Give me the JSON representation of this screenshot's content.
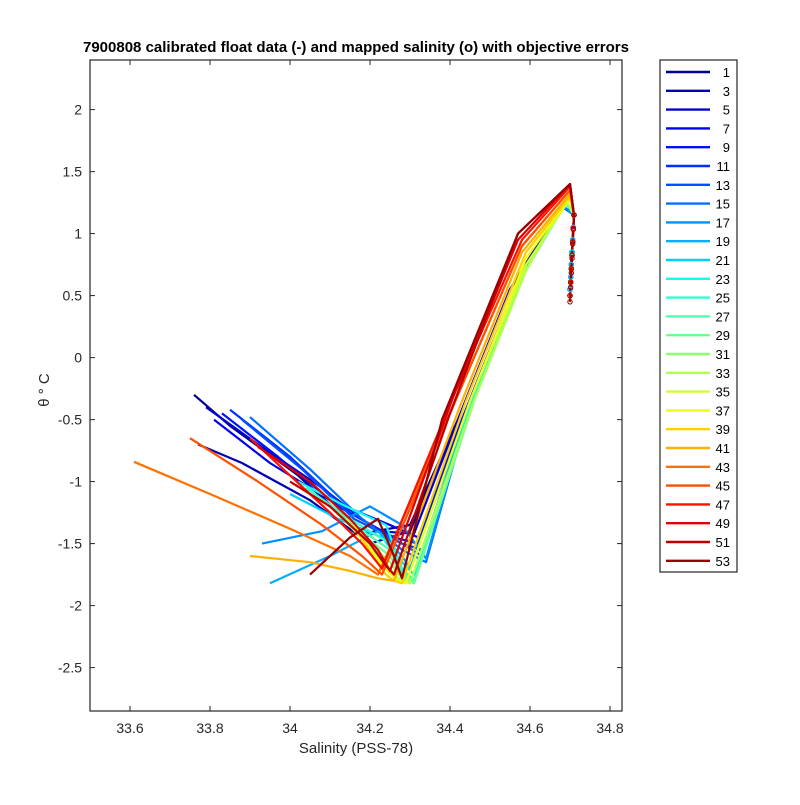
{
  "chart_data": {
    "type": "line",
    "title": "7900808 calibrated float data (-) and mapped salinity (o) with objective errors",
    "xlabel": "Salinity (PSS-78)",
    "ylabel": "θ ° C",
    "xlim": [
      33.5,
      34.83
    ],
    "ylim": [
      -2.85,
      2.4
    ],
    "xticks": [
      33.6,
      33.8,
      34,
      34.2,
      34.4,
      34.6,
      34.8
    ],
    "xtick_labels": [
      "33.6",
      "33.8",
      "34",
      "34.2",
      "34.4",
      "34.6",
      "34.8"
    ],
    "yticks": [
      2,
      1.5,
      1,
      0.5,
      0,
      -0.5,
      -1,
      -1.5,
      -2,
      -2.5
    ],
    "ytick_labels": [
      "2",
      "1.5",
      "1",
      "0.5",
      "0",
      "-0.5",
      "-1",
      "-1.5",
      "-2",
      "-2.5"
    ],
    "grid": false,
    "legend_position": "outside-right",
    "series": [
      {
        "name": "1",
        "color": "#00008f",
        "x": [
          33.76,
          33.85,
          34.02,
          34.18,
          34.3,
          34.42,
          34.55,
          34.68,
          34.71,
          34.7
        ],
        "y": [
          -0.3,
          -0.55,
          -0.95,
          -1.42,
          -1.35,
          -0.5,
          0.55,
          1.22,
          1.15,
          0.55
        ]
      },
      {
        "name": "3",
        "color": "#0000b0",
        "x": [
          33.77,
          33.88,
          34.05,
          34.2,
          34.3,
          34.42,
          34.55,
          34.68,
          34.71,
          34.7
        ],
        "y": [
          -0.7,
          -0.85,
          -1.15,
          -1.5,
          -1.4,
          -0.5,
          0.55,
          1.22,
          1.15,
          0.55
        ]
      },
      {
        "name": "5",
        "color": "#0000d0",
        "x": [
          33.79,
          33.92,
          34.08,
          34.22,
          34.31,
          34.42,
          34.55,
          34.68,
          34.71,
          34.7
        ],
        "y": [
          -0.4,
          -0.7,
          -1.05,
          -1.4,
          -1.42,
          -0.5,
          0.55,
          1.23,
          1.15,
          0.55
        ]
      },
      {
        "name": "7",
        "color": "#0000f0",
        "x": [
          33.81,
          33.95,
          34.1,
          34.25,
          34.32,
          34.43,
          34.56,
          34.68,
          34.71,
          34.7
        ],
        "y": [
          -0.5,
          -0.85,
          -1.15,
          -1.35,
          -1.45,
          -0.5,
          0.55,
          1.23,
          1.15,
          0.55
        ]
      },
      {
        "name": "9",
        "color": "#0010ff",
        "x": [
          33.83,
          33.97,
          34.12,
          34.26,
          34.32,
          34.43,
          34.56,
          34.68,
          34.71,
          34.7
        ],
        "y": [
          -0.45,
          -0.8,
          -1.2,
          -1.45,
          -1.5,
          -0.5,
          0.55,
          1.23,
          1.15,
          0.55
        ]
      },
      {
        "name": "11",
        "color": "#0030ff",
        "x": [
          33.85,
          34.0,
          34.15,
          34.28,
          34.33,
          34.44,
          34.56,
          34.68,
          34.71,
          34.7
        ],
        "y": [
          -0.42,
          -0.8,
          -1.25,
          -1.5,
          -1.55,
          -0.5,
          0.55,
          1.23,
          1.15,
          0.55
        ]
      },
      {
        "name": "13",
        "color": "#0050ff",
        "x": [
          33.88,
          34.03,
          34.16,
          34.28,
          34.33,
          34.44,
          34.56,
          34.68,
          34.71,
          34.7
        ],
        "y": [
          -0.5,
          -0.9,
          -1.3,
          -1.5,
          -1.6,
          -0.5,
          0.55,
          1.23,
          1.15,
          0.55
        ]
      },
      {
        "name": "15",
        "color": "#0070ff",
        "x": [
          33.9,
          34.05,
          34.18,
          34.28,
          34.34,
          34.44,
          34.56,
          34.68,
          34.71,
          34.7
        ],
        "y": [
          -0.48,
          -0.9,
          -1.3,
          -1.55,
          -1.65,
          -0.5,
          0.55,
          1.23,
          1.15,
          0.55
        ]
      },
      {
        "name": "17",
        "color": "#0090ff",
        "x": [
          33.93,
          34.08,
          34.2,
          34.28,
          34.34,
          34.44,
          34.56,
          34.68,
          34.71,
          34.7
        ],
        "y": [
          -1.5,
          -1.4,
          -1.2,
          -1.35,
          -1.62,
          -0.5,
          0.55,
          1.23,
          1.15,
          0.55
        ]
      },
      {
        "name": "19",
        "color": "#00b0ff",
        "x": [
          33.95,
          34.1,
          34.22,
          34.28,
          34.3,
          34.45,
          34.57,
          34.69,
          34.71,
          34.7
        ],
        "y": [
          -1.82,
          -1.6,
          -1.4,
          -1.6,
          -1.7,
          -0.4,
          0.6,
          1.25,
          1.15,
          0.55
        ]
      },
      {
        "name": "21",
        "color": "#00d0ff",
        "x": [
          34.0,
          34.12,
          34.23,
          34.28,
          34.31,
          34.45,
          34.57,
          34.69,
          34.71,
          34.7
        ],
        "y": [
          -1.1,
          -1.3,
          -1.45,
          -1.65,
          -1.75,
          -0.4,
          0.6,
          1.25,
          1.15,
          0.55
        ]
      },
      {
        "name": "23",
        "color": "#10ffef",
        "x": [
          34.02,
          34.14,
          34.24,
          34.28,
          34.31,
          34.45,
          34.57,
          34.69,
          34.71,
          34.7
        ],
        "y": [
          -1.0,
          -1.2,
          -1.35,
          -1.7,
          -1.8,
          -0.4,
          0.6,
          1.25,
          1.15,
          0.5
        ]
      },
      {
        "name": "25",
        "color": "#30ffcf",
        "x": [
          34.04,
          34.15,
          34.25,
          34.28,
          34.31,
          34.46,
          34.58,
          34.69,
          34.71,
          34.7
        ],
        "y": [
          -1.05,
          -1.3,
          -1.5,
          -1.72,
          -1.82,
          -0.35,
          0.65,
          1.25,
          1.15,
          0.5
        ]
      },
      {
        "name": "27",
        "color": "#50ffaf",
        "x": [
          34.06,
          34.16,
          34.25,
          34.28,
          34.31,
          34.46,
          34.58,
          34.69,
          34.71,
          34.7
        ],
        "y": [
          -1.1,
          -1.35,
          -1.55,
          -1.75,
          -1.82,
          -0.35,
          0.65,
          1.26,
          1.15,
          0.5
        ]
      },
      {
        "name": "29",
        "color": "#70ff8f",
        "x": [
          34.08,
          34.17,
          34.25,
          34.28,
          34.31,
          34.46,
          34.58,
          34.69,
          34.71,
          34.7
        ],
        "y": [
          -1.15,
          -1.4,
          -1.6,
          -1.76,
          -1.82,
          -0.35,
          0.65,
          1.26,
          1.15,
          0.5
        ]
      },
      {
        "name": "31",
        "color": "#90ff6f",
        "x": [
          34.1,
          34.18,
          34.25,
          34.28,
          34.3,
          34.46,
          34.58,
          34.69,
          34.71,
          34.7
        ],
        "y": [
          -1.2,
          -1.45,
          -1.65,
          -1.78,
          -1.82,
          -0.35,
          0.65,
          1.27,
          1.15,
          0.5
        ]
      },
      {
        "name": "33",
        "color": "#b0ff4f",
        "x": [
          34.12,
          34.19,
          34.25,
          34.27,
          34.3,
          34.46,
          34.59,
          34.69,
          34.71,
          34.7
        ],
        "y": [
          -1.25,
          -1.5,
          -1.7,
          -1.78,
          -1.82,
          -0.35,
          0.7,
          1.27,
          1.15,
          0.5
        ]
      },
      {
        "name": "35",
        "color": "#d0ff2f",
        "x": [
          34.14,
          34.2,
          34.25,
          34.27,
          34.29,
          34.45,
          34.59,
          34.7,
          34.71,
          34.7
        ],
        "y": [
          -1.3,
          -1.55,
          -1.72,
          -1.8,
          -1.82,
          -0.35,
          0.75,
          1.28,
          1.15,
          0.5
        ]
      },
      {
        "name": "37",
        "color": "#f0ff0f",
        "x": [
          34.16,
          34.21,
          34.25,
          34.27,
          34.29,
          34.45,
          34.59,
          34.7,
          34.71,
          34.7
        ],
        "y": [
          -1.35,
          -1.6,
          -1.74,
          -1.8,
          -1.82,
          -0.35,
          0.8,
          1.3,
          1.15,
          0.5
        ]
      },
      {
        "name": "39",
        "color": "#ffd000",
        "x": [
          34.17,
          34.21,
          34.24,
          34.26,
          34.28,
          34.44,
          34.59,
          34.7,
          34.71,
          34.7
        ],
        "y": [
          -1.4,
          -1.62,
          -1.75,
          -1.8,
          -1.82,
          -0.35,
          0.85,
          1.3,
          1.15,
          0.5
        ]
      },
      {
        "name": "41",
        "color": "#ffb000",
        "x": [
          33.9,
          34.05,
          34.15,
          34.22,
          34.26,
          34.43,
          34.58,
          34.7,
          34.71,
          34.7
        ],
        "y": [
          -1.6,
          -1.65,
          -1.72,
          -1.78,
          -1.8,
          -0.35,
          0.85,
          1.32,
          1.15,
          0.5
        ]
      },
      {
        "name": "43",
        "color": "#ff7000",
        "x": [
          33.61,
          33.8,
          34.0,
          34.15,
          34.22,
          34.42,
          34.58,
          34.7,
          34.71,
          34.7
        ],
        "y": [
          -0.84,
          -1.1,
          -1.38,
          -1.6,
          -1.75,
          -0.3,
          0.9,
          1.35,
          1.15,
          0.5
        ]
      },
      {
        "name": "45",
        "color": "#ff5000",
        "x": [
          33.75,
          33.92,
          34.08,
          34.18,
          34.23,
          34.42,
          34.58,
          34.7,
          34.71,
          34.7
        ],
        "y": [
          -0.65,
          -1.0,
          -1.35,
          -1.6,
          -1.75,
          -0.3,
          0.9,
          1.35,
          1.15,
          0.5
        ]
      },
      {
        "name": "47",
        "color": "#ff1000",
        "x": [
          33.9,
          34.0,
          34.1,
          34.18,
          34.23,
          34.41,
          34.58,
          34.7,
          34.71,
          34.7
        ],
        "y": [
          -0.65,
          -0.95,
          -1.25,
          -1.5,
          -1.7,
          -0.3,
          0.95,
          1.38,
          1.15,
          0.5
        ]
      },
      {
        "name": "49",
        "color": "#e00000",
        "x": [
          33.92,
          34.05,
          34.15,
          34.22,
          34.25,
          34.41,
          34.57,
          34.7,
          34.71,
          34.7
        ],
        "y": [
          -0.72,
          -1.0,
          -1.3,
          -1.55,
          -1.72,
          -0.3,
          0.95,
          1.4,
          1.15,
          0.5
        ]
      },
      {
        "name": "51",
        "color": "#c00000",
        "x": [
          34.0,
          34.1,
          34.2,
          34.24,
          34.26,
          34.4,
          34.57,
          34.7,
          34.71,
          34.7
        ],
        "y": [
          -1.0,
          -1.2,
          -1.5,
          -1.68,
          -1.75,
          -0.45,
          1.0,
          1.4,
          1.15,
          0.5
        ]
      },
      {
        "name": "53",
        "color": "#9a0000",
        "x": [
          34.05,
          34.15,
          34.22,
          34.26,
          34.28,
          34.38,
          34.57,
          34.7,
          34.71,
          34.7
        ],
        "y": [
          -1.75,
          -1.45,
          -1.3,
          -1.6,
          -1.78,
          -0.5,
          1.0,
          1.4,
          1.15,
          0.45
        ]
      }
    ]
  }
}
